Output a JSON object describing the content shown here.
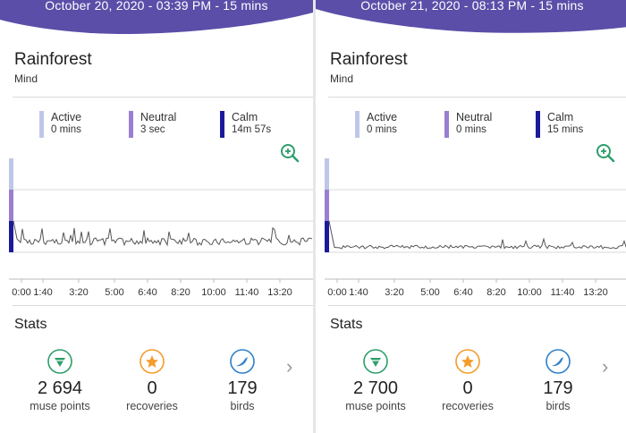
{
  "colors": {
    "header_purple": "#5a4ea8",
    "active": "#bfc7e8",
    "neutral": "#9a7fd1",
    "calm": "#1a1a9a",
    "zoom_green": "#2e9e6b",
    "points_green": "#2e9e6b",
    "recovery_orange": "#f39c2a",
    "birds_blue": "#2f80c8"
  },
  "sessions": [
    {
      "header": "October 20, 2020 - 03:39 PM - 15 mins",
      "title": "Rainforest",
      "subtitle": "Mind",
      "legend": [
        {
          "name": "Active",
          "value": "0 mins",
          "color_key": "active"
        },
        {
          "name": "Neutral",
          "value": "3 sec",
          "color_key": "neutral"
        },
        {
          "name": "Calm",
          "value": "14m 57s",
          "color_key": "calm"
        }
      ],
      "zoom_icon": "zoom-in-icon",
      "chart_ticks": [
        "0:00",
        "1:40",
        "3:20",
        "5:00",
        "6:40",
        "8:20",
        "10:00",
        "11:40",
        "13:20"
      ],
      "stats_title": "Stats",
      "stats": [
        {
          "value": "2 694",
          "label": "muse points",
          "icon": "muse-points-icon"
        },
        {
          "value": "0",
          "label": "recoveries",
          "icon": "recoveries-star-icon"
        },
        {
          "value": "179",
          "label": "birds",
          "icon": "birds-icon"
        }
      ],
      "next_icon": "chevron-right-icon"
    },
    {
      "header": "October 21, 2020 - 08:13 PM - 15 mins",
      "title": "Rainforest",
      "subtitle": "Mind",
      "legend": [
        {
          "name": "Active",
          "value": "0 mins",
          "color_key": "active"
        },
        {
          "name": "Neutral",
          "value": "0 mins",
          "color_key": "neutral"
        },
        {
          "name": "Calm",
          "value": "15 mins",
          "color_key": "calm"
        }
      ],
      "zoom_icon": "zoom-in-icon",
      "chart_ticks": [
        "0:00",
        "1:40",
        "3:20",
        "5:00",
        "6:40",
        "8:20",
        "10:00",
        "11:40",
        "13:20"
      ],
      "stats_title": "Stats",
      "stats": [
        {
          "value": "2 700",
          "label": "muse points",
          "icon": "muse-points-icon"
        },
        {
          "value": "0",
          "label": "recoveries",
          "icon": "recoveries-star-icon"
        },
        {
          "value": "179",
          "label": "birds",
          "icon": "birds-icon"
        }
      ],
      "next_icon": "chevron-right-icon"
    }
  ]
}
